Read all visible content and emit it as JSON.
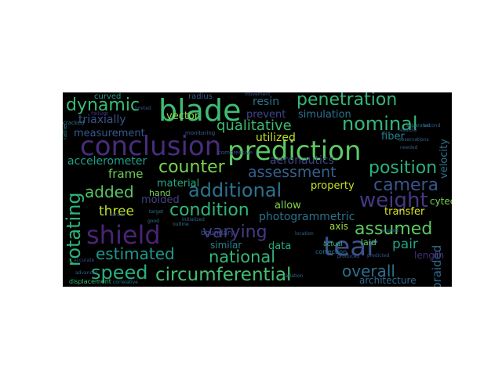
{
  "words": [
    {
      "text": "prediction",
      "color": "#5ec962"
    },
    {
      "text": "conclusion",
      "color": "#472d7b"
    },
    {
      "text": "shield",
      "color": "#482475"
    },
    {
      "text": "blade",
      "color": "#3fbc73"
    },
    {
      "text": "tear",
      "color": "#3b528b"
    },
    {
      "text": "penetration",
      "color": "#35b779"
    },
    {
      "text": "circumferential",
      "color": "#44bf70"
    },
    {
      "text": "additional",
      "color": "#2c728e"
    },
    {
      "text": "nominal",
      "color": "#35b779"
    },
    {
      "text": "condition",
      "color": "#31b57b"
    },
    {
      "text": "weight",
      "color": "#443983"
    },
    {
      "text": "dynamic",
      "color": "#3bbb75"
    },
    {
      "text": "rotating",
      "color": "#2fb47c"
    },
    {
      "text": "varying",
      "color": "#443a83"
    },
    {
      "text": "assumed",
      "color": "#5ec962"
    },
    {
      "text": "national",
      "color": "#35b779"
    },
    {
      "text": "position",
      "color": "#2ab07f"
    },
    {
      "text": "counter",
      "color": "#7ad151"
    },
    {
      "text": "estimated",
      "color": "#1f988b"
    },
    {
      "text": "camera",
      "color": "#39568c"
    },
    {
      "text": "overall",
      "color": "#2e6e8e"
    },
    {
      "text": "speed",
      "color": "#2ab07f"
    },
    {
      "text": "assessment",
      "color": "#355f8d"
    },
    {
      "text": "qualitative",
      "color": "#3dbc74"
    },
    {
      "text": "added",
      "color": "#58c765"
    },
    {
      "text": "three",
      "color": "#bddf26"
    },
    {
      "text": "pair",
      "color": "#20a386"
    },
    {
      "text": "braided",
      "color": "#31688e"
    },
    {
      "text": "accelerometer",
      "color": "#1f9e89"
    },
    {
      "text": "aeronautics",
      "color": "#3e4989"
    },
    {
      "text": "photogrammetric",
      "color": "#2c728e"
    },
    {
      "text": "triaxially",
      "color": "#3a548c"
    },
    {
      "text": "measurement",
      "color": "#38588c"
    },
    {
      "text": "resin",
      "color": "#2c728e"
    },
    {
      "text": "prevent",
      "color": "#3f4788"
    },
    {
      "text": "simulation",
      "color": "#2c718e"
    },
    {
      "text": "fiber",
      "color": "#26828e"
    },
    {
      "text": "velocity",
      "color": "#2d708e"
    },
    {
      "text": "utilized",
      "color": "#c2df23"
    },
    {
      "text": "vector",
      "color": "#95d840"
    },
    {
      "text": "frame",
      "color": "#6ece58"
    },
    {
      "text": "material",
      "color": "#24aa83"
    },
    {
      "text": "molded",
      "color": "#423f85"
    },
    {
      "text": "allow",
      "color": "#7fd34e"
    },
    {
      "text": "property",
      "color": "#c8e020"
    },
    {
      "text": "transfer",
      "color": "#dde318"
    },
    {
      "text": "axis",
      "color": "#a0da39"
    },
    {
      "text": "data",
      "color": "#26ad81"
    },
    {
      "text": "similar",
      "color": "#26828e"
    },
    {
      "text": "laid",
      "color": "#5ec962"
    },
    {
      "text": "length",
      "color": "#472d7b"
    },
    {
      "text": "cytec",
      "color": "#7ad151"
    },
    {
      "text": "assorted",
      "color": "#2c728e"
    },
    {
      "text": "architecture",
      "color": "#31688e"
    },
    {
      "text": "curved",
      "color": "#1fa188"
    },
    {
      "text": "radius",
      "color": "#375b8d"
    },
    {
      "text": "hand",
      "color": "#7ad151"
    },
    {
      "text": "boundary",
      "color": "#3b528b"
    },
    {
      "text": "actual",
      "color": "#35b779"
    },
    {
      "text": "correction",
      "color": "#2c728e"
    },
    {
      "text": "monitoring",
      "color": "#355f8d"
    },
    {
      "text": "compressive",
      "color": "#3b528b"
    },
    {
      "text": "displacement",
      "color": "#35b779"
    },
    {
      "text": "failure",
      "color": "#46327e"
    },
    {
      "text": "cracked",
      "color": "#2c728e"
    },
    {
      "text": "rather",
      "color": "#26828e"
    },
    {
      "text": "observations",
      "color": "#31688e"
    },
    {
      "text": "feasible",
      "color": "#3b528b"
    },
    {
      "text": "separated",
      "color": "#2c728e"
    },
    {
      "text": "second",
      "color": "#355f8d"
    },
    {
      "text": "predicted",
      "color": "#3b528b"
    },
    {
      "text": "outline",
      "color": "#2c728e"
    },
    {
      "text": "advances",
      "color": "#355f8d"
    },
    {
      "text": "accurate",
      "color": "#3b528b"
    },
    {
      "text": "correlative",
      "color": "#2c728e"
    },
    {
      "text": "initialized",
      "color": "#31688e"
    },
    {
      "text": "movement",
      "color": "#3b528b"
    },
    {
      "text": "needed",
      "color": "#355f8d"
    },
    {
      "text": "good",
      "color": "#2c728e"
    },
    {
      "text": "aligned",
      "color": "#355f8d"
    },
    {
      "text": "limited",
      "color": "#3b528b"
    },
    {
      "text": "target",
      "color": "#2c728e"
    },
    {
      "text": "location",
      "color": "#31688e"
    },
    {
      "text": "produced",
      "color": "#3b528b"
    },
    {
      "text": "sensor",
      "color": "#355f8d"
    },
    {
      "text": "variation",
      "color": "#2c728e"
    }
  ]
}
